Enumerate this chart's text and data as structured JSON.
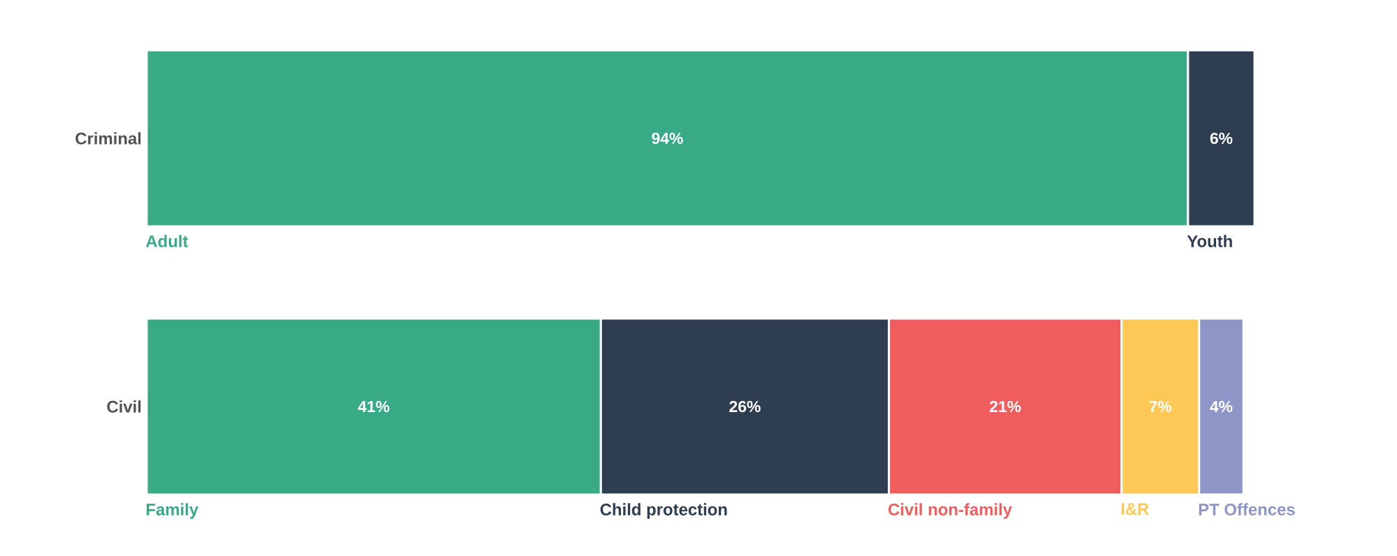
{
  "chart_data": {
    "type": "bar",
    "orientation": "horizontal",
    "stacked": true,
    "categories": [
      "Criminal",
      "Civil"
    ],
    "xlim": [
      0,
      100
    ],
    "tick_labels": "y",
    "legend": false,
    "grid": false,
    "series": [
      {
        "name": "Adult",
        "color": "#38aa85",
        "values": [
          94,
          null
        ],
        "value_labels": [
          "94%",
          null
        ]
      },
      {
        "name": "Youth",
        "color": "#2e3e50",
        "values": [
          6,
          null
        ],
        "value_labels": [
          "6%",
          null
        ]
      },
      {
        "name": "Family",
        "color": "#38aa85",
        "values": [
          null,
          41
        ],
        "value_labels": [
          null,
          "41%"
        ]
      },
      {
        "name": "Child protection",
        "color": "#2e3e50",
        "values": [
          null,
          26
        ],
        "value_labels": [
          null,
          "26%"
        ]
      },
      {
        "name": "Civil non-family",
        "color": "#f05d5d",
        "values": [
          null,
          21
        ],
        "value_labels": [
          null,
          "21%"
        ]
      },
      {
        "name": "I&R",
        "color": "#fec857",
        "values": [
          null,
          7
        ],
        "value_labels": [
          null,
          "7%"
        ]
      },
      {
        "name": "PT Offences",
        "color": "#8e96c8",
        "values": [
          null,
          4
        ],
        "value_labels": [
          null,
          "4%"
        ]
      }
    ]
  }
}
